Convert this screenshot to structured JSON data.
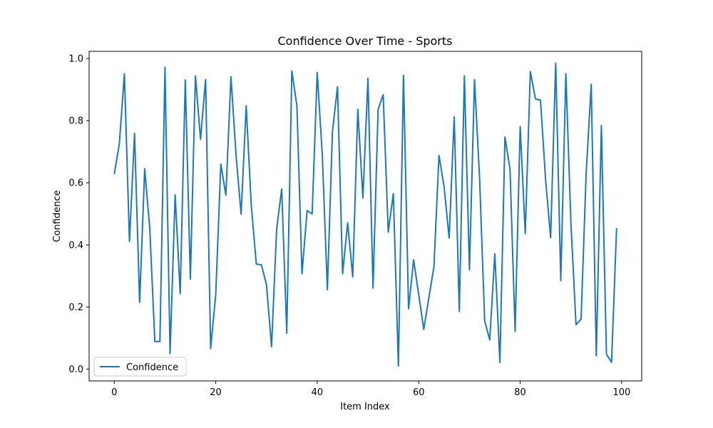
{
  "chart_data": {
    "type": "line",
    "title": "Confidence Over Time - Sports",
    "xlabel": "Item Index",
    "ylabel": "Confidence",
    "xlim": [
      -4.95,
      103.95
    ],
    "ylim": [
      -0.038,
      1.023
    ],
    "xticks": [
      0,
      20,
      40,
      60,
      80,
      100
    ],
    "yticks": [
      0.0,
      0.2,
      0.4,
      0.6,
      0.8,
      1.0
    ],
    "xtick_labels": [
      "0",
      "20",
      "40",
      "60",
      "80",
      "100"
    ],
    "ytick_labels": [
      "0.0",
      "0.2",
      "0.4",
      "0.6",
      "0.8",
      "1.0"
    ],
    "grid": false,
    "legend": "lower-left",
    "series": [
      {
        "name": "Confidence",
        "color": "#1f77b4",
        "x": [
          0,
          1,
          2,
          3,
          4,
          5,
          6,
          7,
          8,
          9,
          10,
          11,
          12,
          13,
          14,
          15,
          16,
          17,
          18,
          19,
          20,
          21,
          22,
          23,
          24,
          25,
          26,
          27,
          28,
          29,
          30,
          31,
          32,
          33,
          34,
          35,
          36,
          37,
          38,
          39,
          40,
          41,
          42,
          43,
          44,
          45,
          46,
          47,
          48,
          49,
          50,
          51,
          52,
          53,
          54,
          55,
          56,
          57,
          58,
          59,
          60,
          61,
          62,
          63,
          64,
          65,
          66,
          67,
          68,
          69,
          70,
          71,
          72,
          73,
          74,
          75,
          76,
          77,
          78,
          79,
          80,
          81,
          82,
          83,
          84,
          85,
          86,
          87,
          88,
          89,
          90,
          91,
          92,
          93,
          94,
          95,
          96,
          97,
          98,
          99
        ],
        "values": [
          0.628,
          0.725,
          0.951,
          0.411,
          0.759,
          0.215,
          0.645,
          0.453,
          0.089,
          0.089,
          0.972,
          0.05,
          0.561,
          0.243,
          0.931,
          0.29,
          0.944,
          0.74,
          0.932,
          0.066,
          0.24,
          0.66,
          0.56,
          0.941,
          0.689,
          0.499,
          0.848,
          0.527,
          0.338,
          0.336,
          0.272,
          0.072,
          0.45,
          0.58,
          0.116,
          0.96,
          0.847,
          0.307,
          0.51,
          0.5,
          0.955,
          0.69,
          0.256,
          0.764,
          0.909,
          0.307,
          0.471,
          0.297,
          0.836,
          0.551,
          0.936,
          0.261,
          0.836,
          0.883,
          0.441,
          0.565,
          0.01,
          0.946,
          0.194,
          0.352,
          0.24,
          0.128,
          0.23,
          0.329,
          0.688,
          0.588,
          0.422,
          0.812,
          0.186,
          0.944,
          0.32,
          0.932,
          0.615,
          0.155,
          0.094,
          0.371,
          0.021,
          0.747,
          0.643,
          0.122,
          0.781,
          0.436,
          0.958,
          0.87,
          0.866,
          0.612,
          0.423,
          0.985,
          0.285,
          0.951,
          0.47,
          0.143,
          0.161,
          0.63,
          0.917,
          0.043,
          0.784,
          0.048,
          0.022,
          0.454
        ]
      }
    ]
  }
}
